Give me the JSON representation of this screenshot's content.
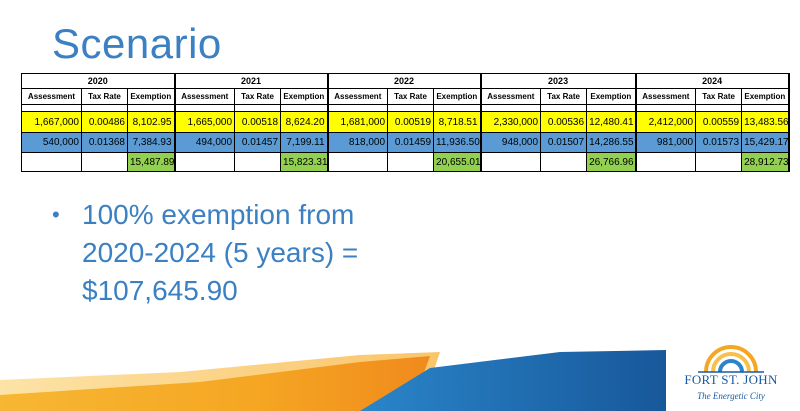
{
  "title": "Scenario",
  "table": {
    "years": [
      "2020",
      "2021",
      "2022",
      "2023",
      "2024"
    ],
    "headers": [
      "Assessment",
      "Tax Rate",
      "Exemption"
    ],
    "rows": {
      "yellow": [
        [
          "1,667,000",
          "0.00486",
          "8,102.95"
        ],
        [
          "1,665,000",
          "0.00518",
          "8,624.20"
        ],
        [
          "1,681,000",
          "0.00519",
          "8,718.51"
        ],
        [
          "2,330,000",
          "0.00536",
          "12,480.41"
        ],
        [
          "2,412,000",
          "0.00559",
          "13,483.56"
        ]
      ],
      "blue": [
        [
          "540,000",
          "0.01368",
          "7,384.93"
        ],
        [
          "494,000",
          "0.01457",
          "7,199.11"
        ],
        [
          "818,000",
          "0.01459",
          "11,936.50"
        ],
        [
          "948,000",
          "0.01507",
          "14,286.55"
        ],
        [
          "981,000",
          "0.01573",
          "15,429.17"
        ]
      ],
      "totals": [
        "15,487.89",
        "15,823.31",
        "20,655.01",
        "26,766.96",
        "28,912.73"
      ]
    }
  },
  "bullet": {
    "symbol": "•",
    "lines": [
      "100% exemption from",
      "2020-2024 (5 years) =",
      "$107,645.90"
    ]
  },
  "logo": {
    "name": "FORT ST. JOHN",
    "tagline": "The Energetic City"
  },
  "colors": {
    "title_blue": "#3b80c2",
    "row_yellow": "#ffff00",
    "row_blue": "#5b9bd5",
    "total_green": "#92d050",
    "deco_orange": "#f5a623",
    "deco_blue": "#1f6fb2"
  }
}
